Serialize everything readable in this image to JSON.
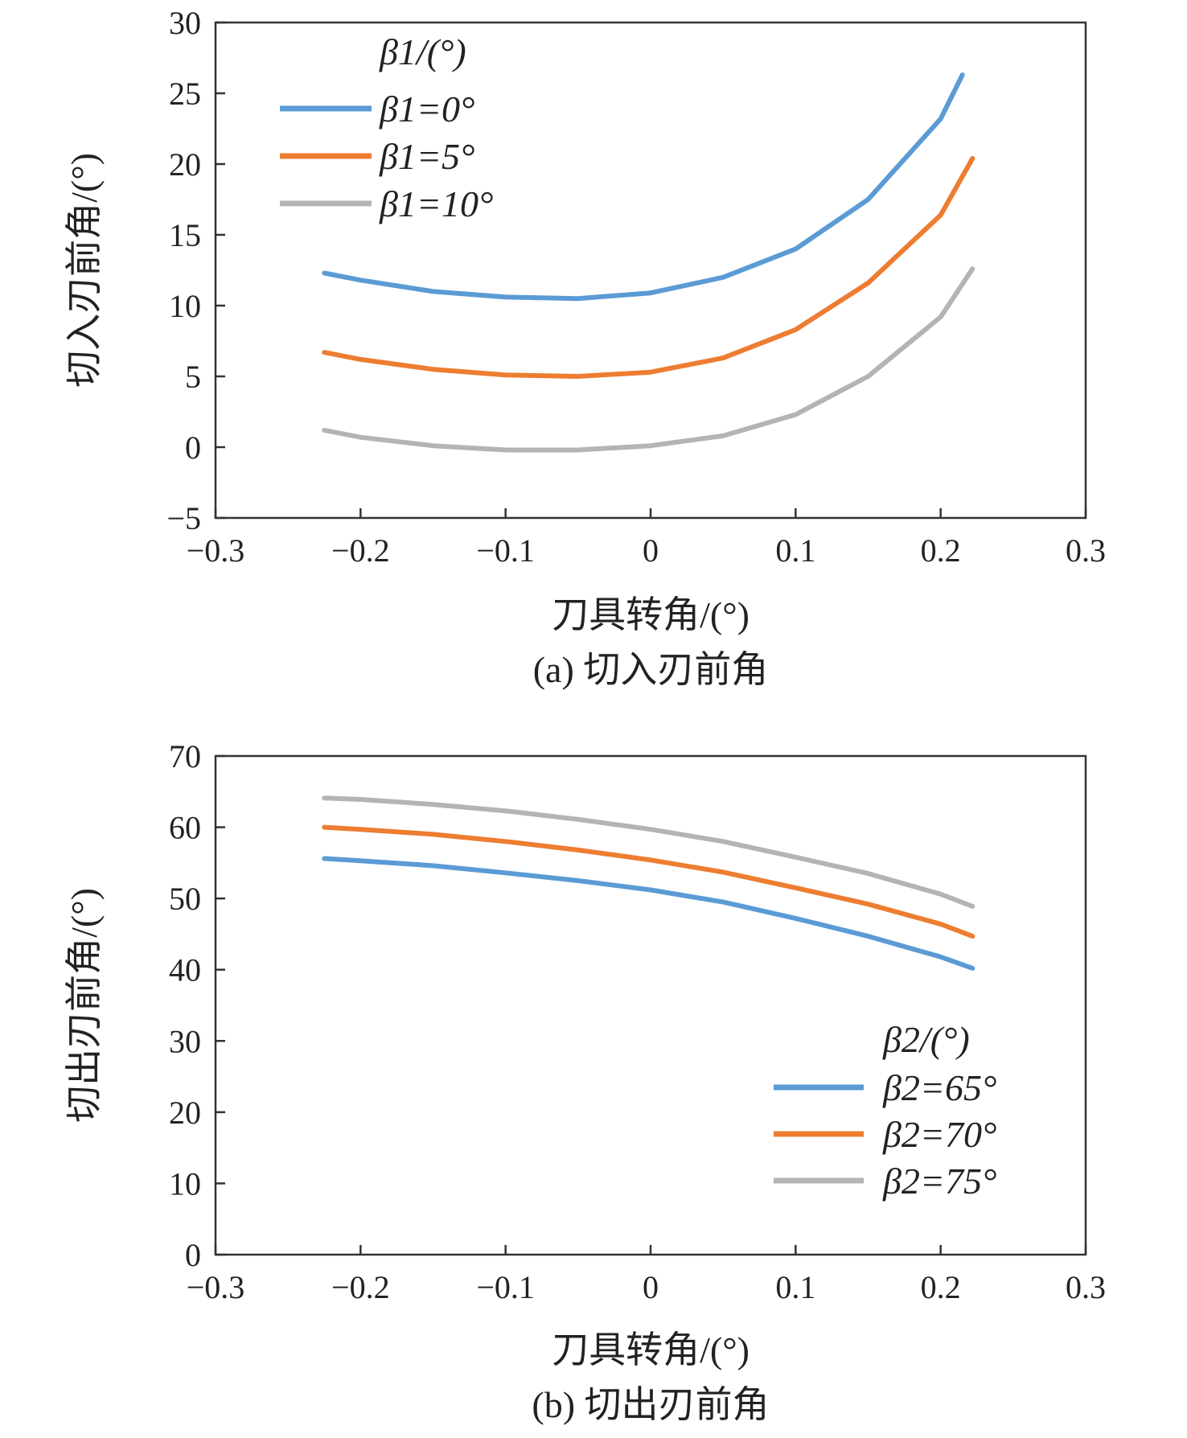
{
  "chart_data": [
    {
      "type": "line",
      "caption": "(a) 切入刃前角",
      "xlabel": "刀具转角/(°)",
      "ylabel": "切入刃前角/(°)",
      "xlim": [
        -0.3,
        0.3
      ],
      "ylim": [
        -5,
        30
      ],
      "xticks": [
        -0.3,
        -0.2,
        -0.1,
        0,
        0.1,
        0.2,
        0.3
      ],
      "xtick_labels": [
        "−0.3",
        "−0.2",
        "−0.1",
        "0",
        "0.1",
        "0.2",
        "0.3"
      ],
      "yticks": [
        -5,
        0,
        5,
        10,
        15,
        20,
        25,
        30
      ],
      "ytick_labels": [
        "−5",
        "0",
        "5",
        "10",
        "15",
        "20",
        "25",
        "30"
      ],
      "legend_title": "β1/(°)",
      "legend_position": "top-left",
      "series": [
        {
          "name": "β1=0°",
          "color": "#5b9bd5",
          "x": [
            -0.225,
            -0.2,
            -0.15,
            -0.1,
            -0.05,
            0,
            0.05,
            0.1,
            0.15,
            0.2,
            0.215
          ],
          "y": [
            12.3,
            11.8,
            11.0,
            10.6,
            10.5,
            10.9,
            12.0,
            14.0,
            17.5,
            23.2,
            26.3
          ]
        },
        {
          "name": "β1=5°",
          "color": "#ed7d31",
          "x": [
            -0.225,
            -0.2,
            -0.15,
            -0.1,
            -0.05,
            0,
            0.05,
            0.1,
            0.15,
            0.2,
            0.222
          ],
          "y": [
            6.7,
            6.2,
            5.5,
            5.1,
            5.0,
            5.3,
            6.3,
            8.3,
            11.6,
            16.4,
            20.4
          ]
        },
        {
          "name": "β1=10°",
          "color": "#b4b4b4",
          "x": [
            -0.225,
            -0.2,
            -0.15,
            -0.1,
            -0.05,
            0,
            0.05,
            0.1,
            0.15,
            0.2,
            0.222
          ],
          "y": [
            1.2,
            0.7,
            0.1,
            -0.2,
            -0.2,
            0.1,
            0.8,
            2.3,
            5.0,
            9.2,
            12.6
          ]
        }
      ]
    },
    {
      "type": "line",
      "caption": "(b) 切出刃前角",
      "xlabel": "刀具转角/(°)",
      "ylabel": "切出刃前角/(°)",
      "xlim": [
        -0.3,
        0.3
      ],
      "ylim": [
        0,
        70
      ],
      "xticks": [
        -0.3,
        -0.2,
        -0.1,
        0,
        0.1,
        0.2,
        0.3
      ],
      "xtick_labels": [
        "−0.3",
        "−0.2",
        "−0.1",
        "0",
        "0.1",
        "0.2",
        "0.3"
      ],
      "yticks": [
        0,
        10,
        20,
        30,
        40,
        50,
        60,
        70
      ],
      "ytick_labels": [
        "0",
        "10",
        "20",
        "30",
        "40",
        "50",
        "60",
        "70"
      ],
      "legend_title": "β2/(°)",
      "legend_position": "bottom-right",
      "series": [
        {
          "name": "β2=65°",
          "color": "#5b9bd5",
          "x": [
            -0.225,
            -0.2,
            -0.15,
            -0.1,
            -0.05,
            0,
            0.05,
            0.1,
            0.15,
            0.2,
            0.222
          ],
          "y": [
            55.6,
            55.3,
            54.6,
            53.6,
            52.5,
            51.2,
            49.5,
            47.2,
            44.7,
            41.8,
            40.2
          ]
        },
        {
          "name": "β2=70°",
          "color": "#ed7d31",
          "x": [
            -0.225,
            -0.2,
            -0.15,
            -0.1,
            -0.05,
            0,
            0.05,
            0.1,
            0.15,
            0.2,
            0.222
          ],
          "y": [
            60.0,
            59.7,
            59.0,
            58.0,
            56.8,
            55.4,
            53.7,
            51.5,
            49.2,
            46.4,
            44.7
          ]
        },
        {
          "name": "β2=75°",
          "color": "#b4b4b4",
          "x": [
            -0.225,
            -0.2,
            -0.15,
            -0.1,
            -0.05,
            0,
            0.05,
            0.1,
            0.15,
            0.2,
            0.222
          ],
          "y": [
            64.1,
            63.9,
            63.2,
            62.3,
            61.1,
            59.7,
            58.0,
            55.8,
            53.5,
            50.6,
            48.9
          ]
        }
      ]
    }
  ]
}
